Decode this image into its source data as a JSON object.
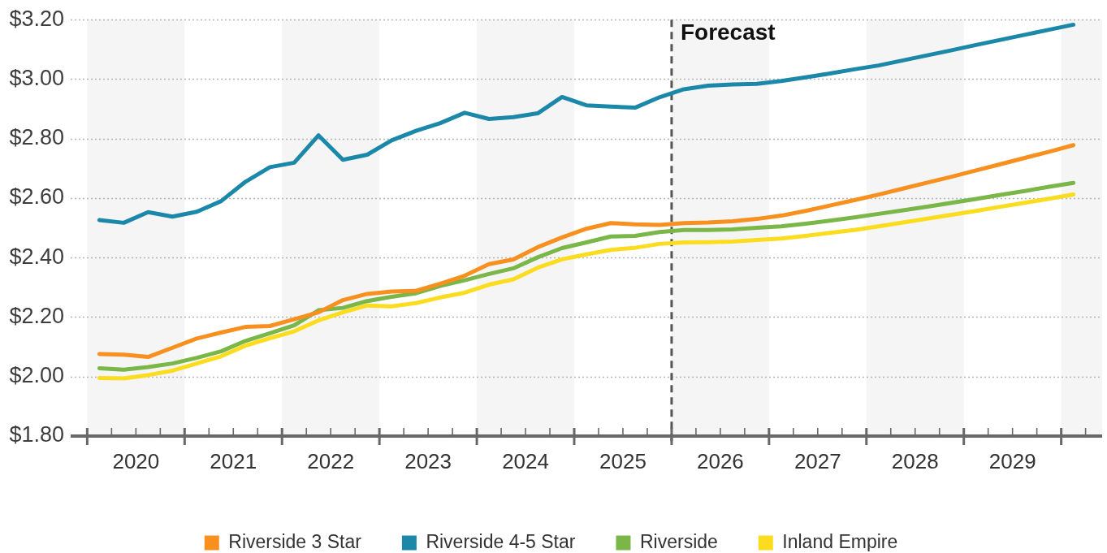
{
  "chart_data": {
    "type": "line",
    "x": [
      2020.125,
      2020.375,
      2020.625,
      2020.875,
      2021.125,
      2021.375,
      2021.625,
      2021.875,
      2022.125,
      2022.375,
      2022.625,
      2022.875,
      2023.125,
      2023.375,
      2023.625,
      2023.875,
      2024.125,
      2024.375,
      2024.625,
      2024.875,
      2025.125,
      2025.375,
      2025.625,
      2025.875,
      2026.125,
      2026.375,
      2026.625,
      2026.875,
      2027.125,
      2027.375,
      2027.625,
      2027.875,
      2028.125,
      2028.375,
      2028.625,
      2028.875,
      2029.125,
      2029.375,
      2029.625,
      2029.875,
      2030.125
    ],
    "series": [
      {
        "name": "Riverside 3 Star",
        "color": "#f7901e",
        "values": [
          2.076,
          2.074,
          2.066,
          2.097,
          2.128,
          2.148,
          2.167,
          2.17,
          2.193,
          2.216,
          2.257,
          2.278,
          2.286,
          2.288,
          2.312,
          2.339,
          2.378,
          2.394,
          2.435,
          2.468,
          2.497,
          2.516,
          2.512,
          2.51,
          2.516,
          2.518,
          2.522,
          2.53,
          2.541,
          2.557,
          2.575,
          2.593,
          2.612,
          2.632,
          2.652,
          2.672,
          2.693,
          2.714,
          2.735,
          2.756,
          2.778
        ]
      },
      {
        "name": "Riverside 4-5 Star",
        "color": "#1c88a9",
        "values": [
          2.526,
          2.517,
          2.553,
          2.538,
          2.554,
          2.59,
          2.655,
          2.704,
          2.719,
          2.811,
          2.729,
          2.746,
          2.794,
          2.826,
          2.852,
          2.887,
          2.866,
          2.872,
          2.885,
          2.94,
          2.912,
          2.908,
          2.904,
          2.939,
          2.966,
          2.978,
          2.982,
          2.984,
          2.994,
          3.006,
          3.019,
          3.033,
          3.046,
          3.063,
          3.08,
          3.097,
          3.115,
          3.132,
          3.149,
          3.166,
          3.183
        ]
      },
      {
        "name": "Riverside",
        "color": "#7ab648",
        "values": [
          2.028,
          2.023,
          2.032,
          2.044,
          2.063,
          2.085,
          2.12,
          2.146,
          2.172,
          2.223,
          2.231,
          2.254,
          2.268,
          2.28,
          2.305,
          2.324,
          2.345,
          2.364,
          2.401,
          2.432,
          2.451,
          2.471,
          2.473,
          2.486,
          2.493,
          2.493,
          2.495,
          2.5,
          2.505,
          2.514,
          2.524,
          2.535,
          2.547,
          2.559,
          2.571,
          2.584,
          2.597,
          2.611,
          2.624,
          2.638,
          2.651
        ]
      },
      {
        "name": "Inland Empire",
        "color": "#fcdc1e",
        "values": [
          1.995,
          1.994,
          2.005,
          2.02,
          2.044,
          2.068,
          2.104,
          2.129,
          2.152,
          2.189,
          2.216,
          2.239,
          2.236,
          2.247,
          2.266,
          2.282,
          2.309,
          2.327,
          2.366,
          2.394,
          2.411,
          2.426,
          2.433,
          2.446,
          2.451,
          2.452,
          2.454,
          2.459,
          2.464,
          2.473,
          2.483,
          2.493,
          2.505,
          2.518,
          2.531,
          2.544,
          2.557,
          2.571,
          2.584,
          2.598,
          2.612
        ]
      }
    ],
    "xlim": [
      2019.83,
      2030.42
    ],
    "xticks": [
      {
        "value": 2020,
        "label": null
      },
      {
        "value": 2020.25,
        "label": null
      },
      {
        "value": 2020.5,
        "label": "2020"
      },
      {
        "value": 2020.75,
        "label": null
      },
      {
        "value": 2021,
        "label": null
      },
      {
        "value": 2021.25,
        "label": null
      },
      {
        "value": 2021.5,
        "label": "2021"
      },
      {
        "value": 2021.75,
        "label": null
      },
      {
        "value": 2022,
        "label": null
      },
      {
        "value": 2022.25,
        "label": null
      },
      {
        "value": 2022.5,
        "label": "2022"
      },
      {
        "value": 2022.75,
        "label": null
      },
      {
        "value": 2023,
        "label": null
      },
      {
        "value": 2023.25,
        "label": null
      },
      {
        "value": 2023.5,
        "label": "2023"
      },
      {
        "value": 2023.75,
        "label": null
      },
      {
        "value": 2024,
        "label": null
      },
      {
        "value": 2024.25,
        "label": null
      },
      {
        "value": 2024.5,
        "label": "2024"
      },
      {
        "value": 2024.75,
        "label": null
      },
      {
        "value": 2025,
        "label": null
      },
      {
        "value": 2025.25,
        "label": null
      },
      {
        "value": 2025.5,
        "label": "2025"
      },
      {
        "value": 2025.75,
        "label": null
      },
      {
        "value": 2026,
        "label": null
      },
      {
        "value": 2026.25,
        "label": null
      },
      {
        "value": 2026.5,
        "label": "2026"
      },
      {
        "value": 2026.75,
        "label": null
      },
      {
        "value": 2027,
        "label": null
      },
      {
        "value": 2027.25,
        "label": null
      },
      {
        "value": 2027.5,
        "label": "2027"
      },
      {
        "value": 2027.75,
        "label": null
      },
      {
        "value": 2028,
        "label": null
      },
      {
        "value": 2028.25,
        "label": null
      },
      {
        "value": 2028.5,
        "label": "2028"
      },
      {
        "value": 2028.75,
        "label": null
      },
      {
        "value": 2029,
        "label": null
      },
      {
        "value": 2029.25,
        "label": null
      },
      {
        "value": 2029.5,
        "label": "2029"
      },
      {
        "value": 2029.75,
        "label": null
      },
      {
        "value": 2030,
        "label": null
      },
      {
        "value": 2030.25,
        "label": null
      }
    ],
    "ylim": [
      1.8,
      3.2
    ],
    "yticks": [
      {
        "value": 1.8,
        "label": "$1.80"
      },
      {
        "value": 2.0,
        "label": "$2.00"
      },
      {
        "value": 2.2,
        "label": "$2.20"
      },
      {
        "value": 2.4,
        "label": "$2.40"
      },
      {
        "value": 2.6,
        "label": "$2.60"
      },
      {
        "value": 2.8,
        "label": "$2.80"
      },
      {
        "value": 3.0,
        "label": "$3.00"
      },
      {
        "value": 3.2,
        "label": "$3.20"
      }
    ],
    "grid": "y",
    "legend": "bottom",
    "bands": [
      {
        "axis": "x",
        "from": 2020,
        "to": 2021,
        "color": "#f5f5f5"
      },
      {
        "axis": "x",
        "from": 2022,
        "to": 2023,
        "color": "#f5f5f5"
      },
      {
        "axis": "x",
        "from": 2024,
        "to": 2025,
        "color": "#f5f5f5"
      },
      {
        "axis": "x",
        "from": 2026,
        "to": 2027,
        "color": "#f5f5f5"
      },
      {
        "axis": "x",
        "from": 2028,
        "to": 2029,
        "color": "#f5f5f5"
      },
      {
        "axis": "x",
        "from": 2030,
        "to": 2030.42,
        "color": "#f5f5f5"
      }
    ],
    "ref_lines": [
      {
        "axis": "x",
        "value": 2026,
        "label": "Forecast",
        "color": "#555555",
        "line_style": "dashed"
      }
    ]
  }
}
